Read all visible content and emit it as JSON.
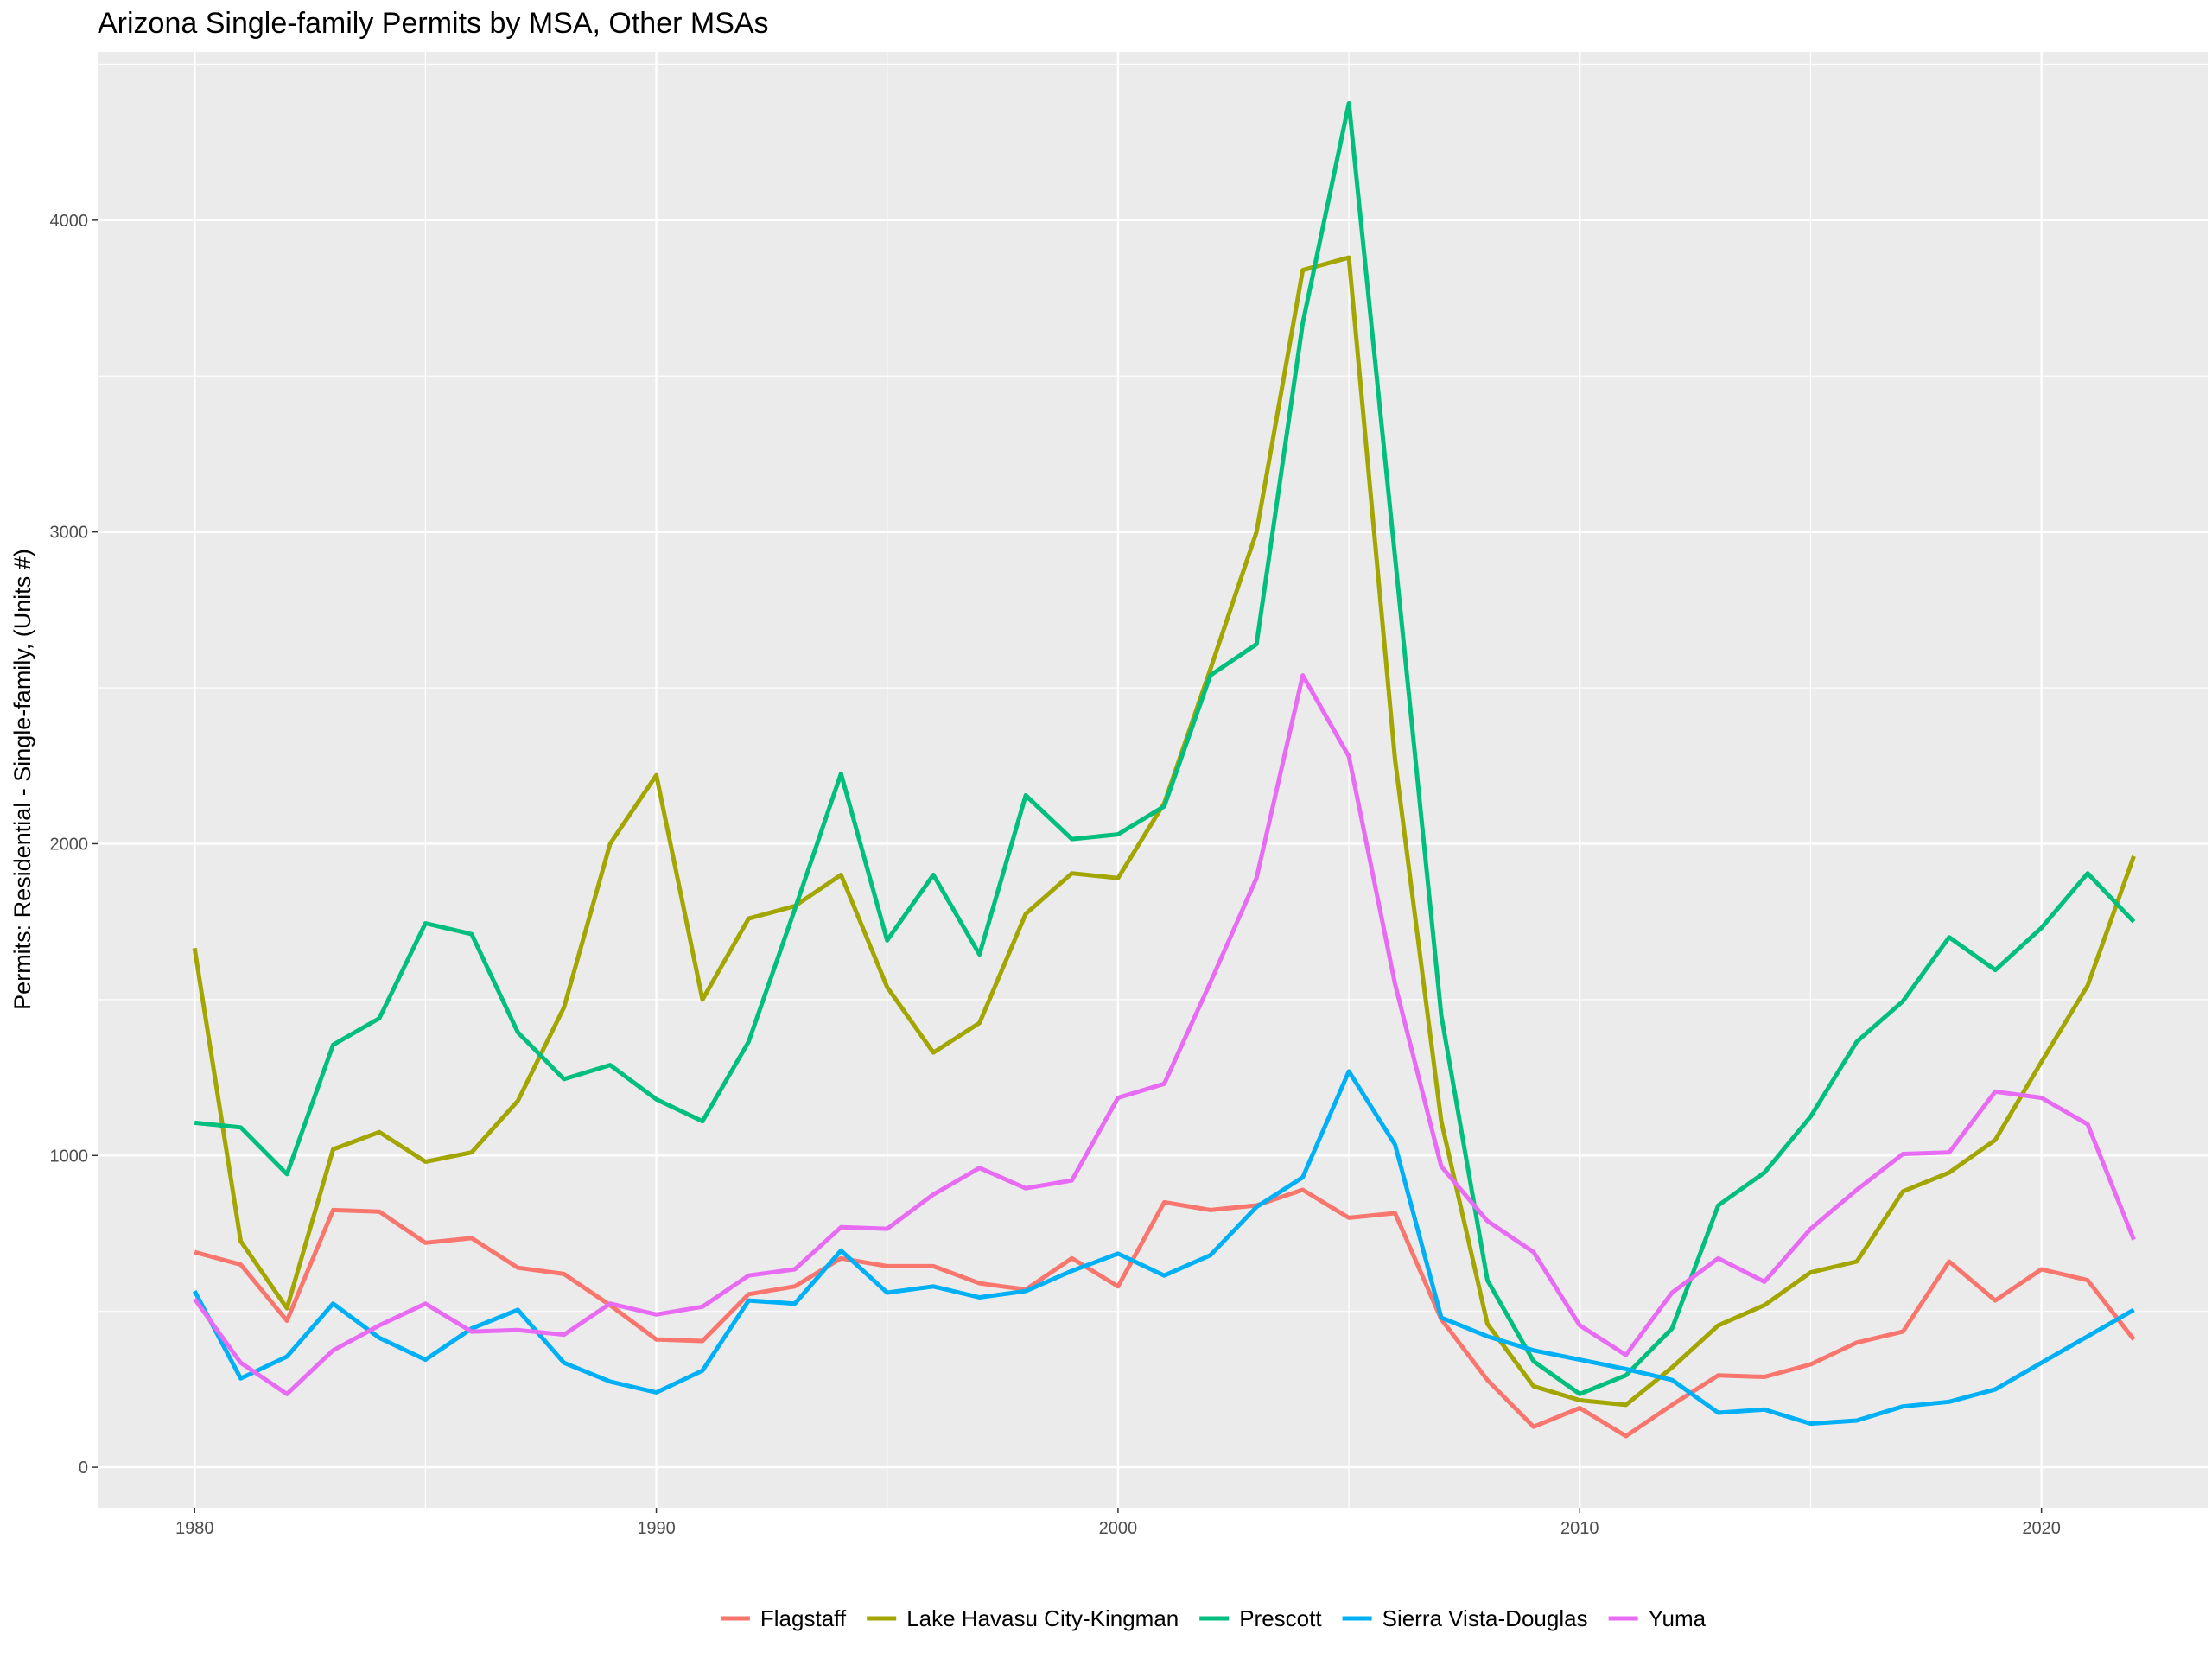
{
  "chart_data": {
    "type": "line",
    "title": "Arizona Single-family Permits by MSA, Other MSAs",
    "xlabel": "",
    "ylabel": "Permits: Residential - Single-family, (Units #)",
    "xlim": [
      1977.9,
      2023.6
    ],
    "ylim": [
      -130,
      4540
    ],
    "x_ticks": [
      1980,
      1990,
      2000,
      2010,
      2020
    ],
    "y_ticks": [
      0,
      1000,
      2000,
      3000,
      4000
    ],
    "grid": true,
    "legend_position": "bottom",
    "x": [
      1980,
      1981,
      1982,
      1983,
      1984,
      1985,
      1986,
      1987,
      1988,
      1989,
      1990,
      1991,
      1992,
      1993,
      1994,
      1995,
      1996,
      1997,
      1998,
      1999,
      2000,
      2001,
      2002,
      2003,
      2004,
      2005,
      2006,
      2007,
      2008,
      2009,
      2010,
      2011,
      2012,
      2013,
      2014,
      2015,
      2016,
      2017,
      2018,
      2019,
      2020,
      2021,
      2022
    ],
    "series": [
      {
        "name": "Flagstaff",
        "color": "#F8766D",
        "values": [
          690,
          650,
          470,
          825,
          820,
          720,
          735,
          640,
          620,
          520,
          410,
          405,
          555,
          580,
          670,
          645,
          645,
          590,
          570,
          670,
          580,
          850,
          825,
          840,
          890,
          800,
          815,
          475,
          280,
          130,
          190,
          100,
          200,
          295,
          290,
          330,
          400,
          435,
          660,
          535,
          635,
          600,
          410
        ]
      },
      {
        "name": "Lake Havasu City-Kingman",
        "color": "#A3A500",
        "values": [
          1665,
          725,
          510,
          1020,
          1075,
          980,
          1010,
          1175,
          1475,
          2000,
          2220,
          1500,
          1760,
          1800,
          1900,
          1540,
          1330,
          1425,
          1775,
          1905,
          1890,
          2130,
          2560,
          3000,
          3840,
          3880,
          2270,
          1110,
          460,
          260,
          215,
          200,
          320,
          455,
          520,
          625,
          660,
          885,
          945,
          1050,
          1300,
          1545,
          1960
        ]
      },
      {
        "name": "Prescott",
        "color": "#00BF7D",
        "values": [
          1105,
          1090,
          940,
          1355,
          1440,
          1745,
          1710,
          1395,
          1245,
          1290,
          1180,
          1110,
          1365,
          1790,
          2225,
          1690,
          1900,
          1645,
          2155,
          2015,
          2030,
          2120,
          2540,
          2640,
          3670,
          4375,
          2920,
          1450,
          600,
          340,
          235,
          295,
          445,
          840,
          945,
          1125,
          1365,
          1495,
          1700,
          1595,
          1730,
          1905,
          1750
        ]
      },
      {
        "name": "Sierra Vista-Douglas",
        "color": "#00B0F6",
        "values": [
          565,
          285,
          355,
          525,
          415,
          345,
          445,
          505,
          335,
          275,
          240,
          310,
          535,
          525,
          695,
          560,
          580,
          545,
          565,
          630,
          685,
          615,
          680,
          835,
          930,
          1270,
          1035,
          480,
          420,
          375,
          345,
          315,
          280,
          175,
          185,
          140,
          150,
          195,
          210,
          250,
          335,
          420,
          505
        ]
      },
      {
        "name": "Yuma",
        "color": "#E76BF3",
        "values": [
          540,
          335,
          235,
          375,
          455,
          525,
          435,
          440,
          425,
          525,
          490,
          515,
          615,
          635,
          770,
          765,
          875,
          960,
          895,
          920,
          1185,
          1230,
          1555,
          1890,
          2540,
          2280,
          1550,
          965,
          790,
          690,
          455,
          360,
          560,
          670,
          595,
          765,
          890,
          1005,
          1010,
          1205,
          1185,
          1100,
          730
        ]
      }
    ]
  }
}
